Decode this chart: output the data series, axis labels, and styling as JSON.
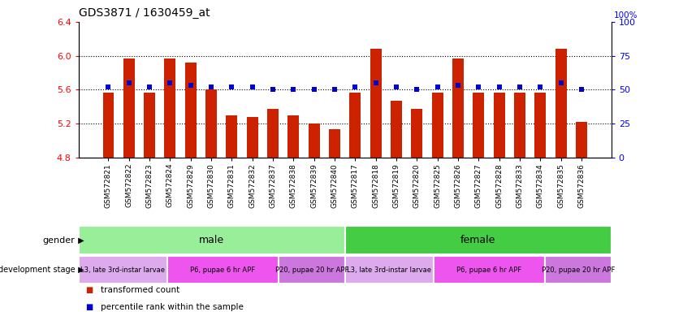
{
  "title": "GDS3871 / 1630459_at",
  "samples": [
    "GSM572821",
    "GSM572822",
    "GSM572823",
    "GSM572824",
    "GSM572829",
    "GSM572830",
    "GSM572831",
    "GSM572832",
    "GSM572837",
    "GSM572838",
    "GSM572839",
    "GSM572840",
    "GSM572817",
    "GSM572818",
    "GSM572819",
    "GSM572820",
    "GSM572825",
    "GSM572826",
    "GSM572827",
    "GSM572828",
    "GSM572833",
    "GSM572834",
    "GSM572835",
    "GSM572836"
  ],
  "bar_values": [
    5.57,
    5.97,
    5.57,
    5.97,
    5.92,
    5.6,
    5.3,
    5.28,
    5.37,
    5.3,
    5.2,
    5.13,
    5.57,
    6.08,
    5.47,
    5.37,
    5.57,
    5.97,
    5.57,
    5.57,
    5.57,
    5.57,
    6.08,
    5.22
  ],
  "percentile_values": [
    52,
    55,
    52,
    55,
    53,
    52,
    52,
    52,
    50,
    50,
    50,
    50,
    52,
    55,
    52,
    50,
    52,
    53,
    52,
    52,
    52,
    52,
    55,
    50
  ],
  "ylim_left": [
    4.8,
    6.4
  ],
  "ylim_right": [
    0,
    100
  ],
  "y_ticks_left": [
    4.8,
    5.2,
    5.6,
    6.0,
    6.4
  ],
  "y_ticks_right": [
    0,
    25,
    50,
    75,
    100
  ],
  "bar_color": "#CC2200",
  "dot_color": "#0000CC",
  "bar_baseline": 4.8,
  "gender_groups": [
    {
      "label": "male",
      "start": 0,
      "end": 12,
      "color": "#99EE99"
    },
    {
      "label": "female",
      "start": 12,
      "end": 24,
      "color": "#44CC44"
    }
  ],
  "dev_stage_groups": [
    {
      "label": "L3, late 3rd-instar larvae",
      "start": 0,
      "end": 4,
      "color": "#DDAAEE"
    },
    {
      "label": "P6, pupae 6 hr APF",
      "start": 4,
      "end": 9,
      "color": "#EE55EE"
    },
    {
      "label": "P20, pupae 20 hr APF",
      "start": 9,
      "end": 12,
      "color": "#CC77DD"
    },
    {
      "label": "L3, late 3rd-instar larvae",
      "start": 12,
      "end": 16,
      "color": "#DDAAEE"
    },
    {
      "label": "P6, pupae 6 hr APF",
      "start": 16,
      "end": 21,
      "color": "#EE55EE"
    },
    {
      "label": "P20, pupae 20 hr APF",
      "start": 21,
      "end": 24,
      "color": "#CC77DD"
    }
  ],
  "legend_items": [
    {
      "label": "transformed count",
      "color": "#CC2200",
      "marker": "s"
    },
    {
      "label": "percentile rank within the sample",
      "color": "#0000CC",
      "marker": "s"
    }
  ],
  "grid_lines": [
    5.2,
    5.6,
    6.0
  ],
  "fig_width": 8.41,
  "fig_height": 3.84,
  "dpi": 100
}
